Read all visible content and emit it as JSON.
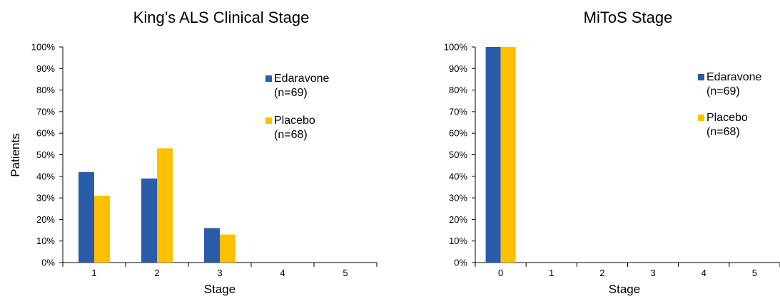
{
  "colors": {
    "edaravone": "#2a5caa",
    "placebo": "#ffc000"
  },
  "chart_data": [
    {
      "type": "bar",
      "title": "King’s ALS Clinical Stage",
      "xlabel": "Stage",
      "ylabel": "Patients",
      "categories": [
        "1",
        "2",
        "3",
        "4",
        "5"
      ],
      "yticks": [
        "0%",
        "10%",
        "20%",
        "30%",
        "40%",
        "50%",
        "60%",
        "70%",
        "80%",
        "90%",
        "100%"
      ],
      "ylim": [
        0,
        100
      ],
      "legend_position": "right",
      "series": [
        {
          "name": "Edaravone",
          "name_line2": "(n=69)",
          "values": [
            42,
            39,
            16,
            0,
            0
          ]
        },
        {
          "name": "Placebo",
          "name_line2": "(n=68)",
          "values": [
            31,
            53,
            13,
            0,
            0
          ]
        }
      ]
    },
    {
      "type": "bar",
      "title": "MiToS Stage",
      "xlabel": "Stage",
      "ylabel": "",
      "categories": [
        "0",
        "1",
        "2",
        "3",
        "4",
        "5"
      ],
      "yticks": [
        "0%",
        "10%",
        "20%",
        "30%",
        "40%",
        "50%",
        "60%",
        "70%",
        "80%",
        "90%",
        "100%"
      ],
      "ylim": [
        0,
        100
      ],
      "legend_position": "right",
      "series": [
        {
          "name": "Edaravone",
          "name_line2": "(n=69)",
          "values": [
            100,
            0,
            0,
            0,
            0,
            0
          ]
        },
        {
          "name": "Placebo",
          "name_line2": "(n=68)",
          "values": [
            100,
            0,
            0,
            0,
            0,
            0
          ]
        }
      ]
    }
  ]
}
